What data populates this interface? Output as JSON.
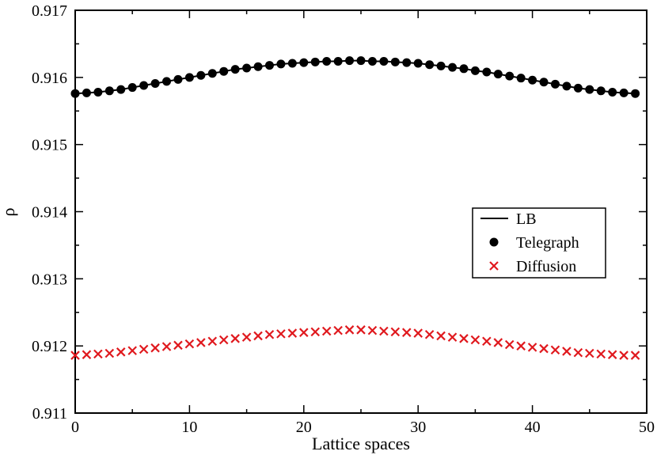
{
  "chart_data": {
    "type": "line",
    "title": "",
    "xlabel": "Lattice spaces",
    "ylabel": "ρ",
    "xlim": [
      0,
      50
    ],
    "ylim": [
      0.911,
      0.917
    ],
    "xticks": [
      0,
      10,
      20,
      30,
      40,
      50
    ],
    "xtick_labels": [
      "0",
      "10",
      "20",
      "30",
      "40",
      "50"
    ],
    "yticks": [
      0.911,
      0.912,
      0.913,
      0.914,
      0.915,
      0.916,
      0.917
    ],
    "ytick_labels": [
      "0.911",
      "0.912",
      "0.913",
      "0.914",
      "0.915",
      "0.916",
      "0.917"
    ],
    "grid": false,
    "legend_position": "center-right",
    "x": [
      0,
      1,
      2,
      3,
      4,
      5,
      6,
      7,
      8,
      9,
      10,
      11,
      12,
      13,
      14,
      15,
      16,
      17,
      18,
      19,
      20,
      21,
      22,
      23,
      24,
      25,
      26,
      27,
      28,
      29,
      30,
      31,
      32,
      33,
      34,
      35,
      36,
      37,
      38,
      39,
      40,
      41,
      42,
      43,
      44,
      45,
      46,
      47,
      48,
      49
    ],
    "series": [
      {
        "name": "LB",
        "style": "line",
        "color": "#000000",
        "values": [
          0.91576,
          0.91577,
          0.91578,
          0.9158,
          0.91582,
          0.91585,
          0.91588,
          0.91591,
          0.91594,
          0.91597,
          0.916,
          0.91603,
          0.91606,
          0.91609,
          0.91612,
          0.91614,
          0.91616,
          0.91618,
          0.9162,
          0.91621,
          0.91622,
          0.91623,
          0.91624,
          0.91624,
          0.91625,
          0.91625,
          0.91624,
          0.91624,
          0.91623,
          0.91622,
          0.91621,
          0.91619,
          0.91617,
          0.91615,
          0.91613,
          0.9161,
          0.91608,
          0.91605,
          0.91602,
          0.91599,
          0.91596,
          0.91593,
          0.9159,
          0.91587,
          0.91584,
          0.91582,
          0.9158,
          0.91578,
          0.91577,
          0.91576
        ]
      },
      {
        "name": "Telegraph",
        "style": "circle",
        "color": "#000000",
        "values": [
          0.91576,
          0.91577,
          0.91578,
          0.9158,
          0.91582,
          0.91585,
          0.91588,
          0.91591,
          0.91594,
          0.91597,
          0.916,
          0.91603,
          0.91606,
          0.91609,
          0.91612,
          0.91614,
          0.91616,
          0.91618,
          0.9162,
          0.91621,
          0.91622,
          0.91623,
          0.91624,
          0.91624,
          0.91625,
          0.91625,
          0.91624,
          0.91624,
          0.91623,
          0.91622,
          0.91621,
          0.91619,
          0.91617,
          0.91615,
          0.91613,
          0.9161,
          0.91608,
          0.91605,
          0.91602,
          0.91599,
          0.91596,
          0.91593,
          0.9159,
          0.91587,
          0.91584,
          0.91582,
          0.9158,
          0.91578,
          0.91577,
          0.91576
        ]
      },
      {
        "name": "Diffusion",
        "style": "cross",
        "color": "#e0191e",
        "values": [
          0.91186,
          0.91187,
          0.91188,
          0.91189,
          0.91191,
          0.91193,
          0.91195,
          0.91197,
          0.91199,
          0.91201,
          0.91203,
          0.91205,
          0.91207,
          0.91209,
          0.91211,
          0.91213,
          0.91215,
          0.91217,
          0.91218,
          0.91219,
          0.9122,
          0.91221,
          0.91222,
          0.91223,
          0.91224,
          0.91224,
          0.91223,
          0.91222,
          0.91221,
          0.9122,
          0.91219,
          0.91217,
          0.91215,
          0.91213,
          0.91211,
          0.91209,
          0.91207,
          0.91205,
          0.91202,
          0.912,
          0.91198,
          0.91196,
          0.91194,
          0.91192,
          0.9119,
          0.91189,
          0.91188,
          0.91187,
          0.91186,
          0.91186
        ]
      }
    ]
  }
}
